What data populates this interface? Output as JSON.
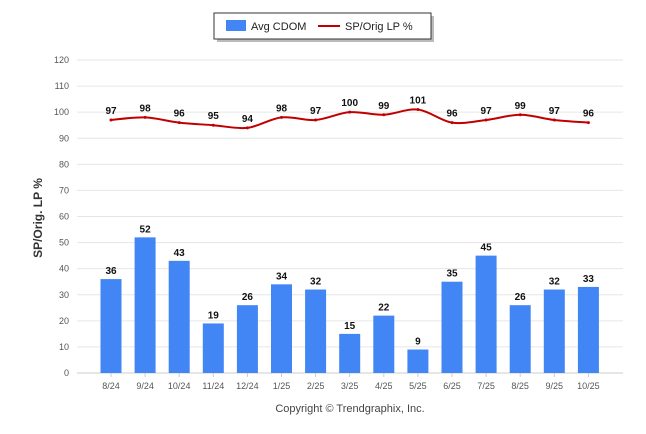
{
  "chart_data": {
    "type": "bar",
    "categories": [
      "8/24",
      "9/24",
      "10/24",
      "11/24",
      "12/24",
      "1/25",
      "2/25",
      "3/25",
      "4/25",
      "5/25",
      "6/25",
      "7/25",
      "8/25",
      "9/25",
      "10/25"
    ],
    "series": [
      {
        "name": "Avg CDOM",
        "kind": "bar",
        "color": "#4285f4",
        "values": [
          36,
          52,
          43,
          19,
          26,
          34,
          32,
          15,
          22,
          9,
          35,
          45,
          26,
          32,
          33
        ]
      },
      {
        "name": "SP/Orig LP %",
        "kind": "line",
        "color": "#c00000",
        "values": [
          97,
          98,
          96,
          95,
          94,
          98,
          97,
          100,
          99,
          101,
          96,
          97,
          99,
          97,
          96
        ]
      }
    ],
    "ylabel": "SP/Orig. LP %",
    "ylim": [
      0,
      120
    ],
    "yticks": [
      0,
      10,
      20,
      30,
      40,
      50,
      60,
      70,
      80,
      90,
      100,
      110,
      120
    ],
    "grid": true,
    "legend": "top-center",
    "footer": "Copyright © Trendgraphix, Inc."
  }
}
